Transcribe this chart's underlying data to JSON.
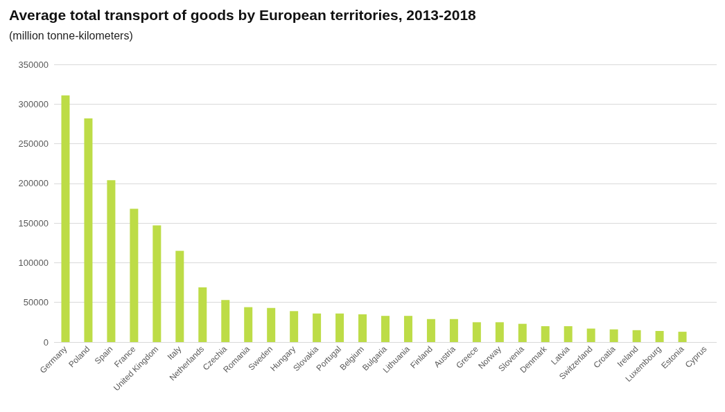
{
  "chart_data": {
    "type": "bar",
    "title": "Average total transport of goods by European territories, 2013-2018",
    "subtitle": "(million tonne-kilometers)",
    "categories": [
      "Germany",
      "Poland",
      "Spain",
      "France",
      "United Kingdom",
      "Italy",
      "Netherlands",
      "Czechia",
      "Romania",
      "Sweden",
      "Hungary",
      "Slovakia",
      "Portugal",
      "Belgium",
      "Bulgaria",
      "Lithuania",
      "Finland",
      "Austria",
      "Greece",
      "Norway",
      "Slovenia",
      "Denmark",
      "Latvia",
      "Switzerland",
      "Croatia",
      "Ireland",
      "Luxembourg",
      "Estonia",
      "Cyprus"
    ],
    "values": [
      311000,
      282000,
      204000,
      168000,
      147000,
      115000,
      69000,
      53000,
      44000,
      43000,
      39000,
      36000,
      36000,
      35000,
      33000,
      33000,
      29000,
      29000,
      25000,
      25000,
      23000,
      20000,
      20000,
      17000,
      16000,
      15000,
      14000,
      13000,
      0
    ],
    "color": "#bddc47",
    "ylim": [
      0,
      350000
    ],
    "yticks": [
      0,
      50000,
      100000,
      150000,
      200000,
      250000,
      300000,
      350000
    ],
    "grid": "y"
  }
}
